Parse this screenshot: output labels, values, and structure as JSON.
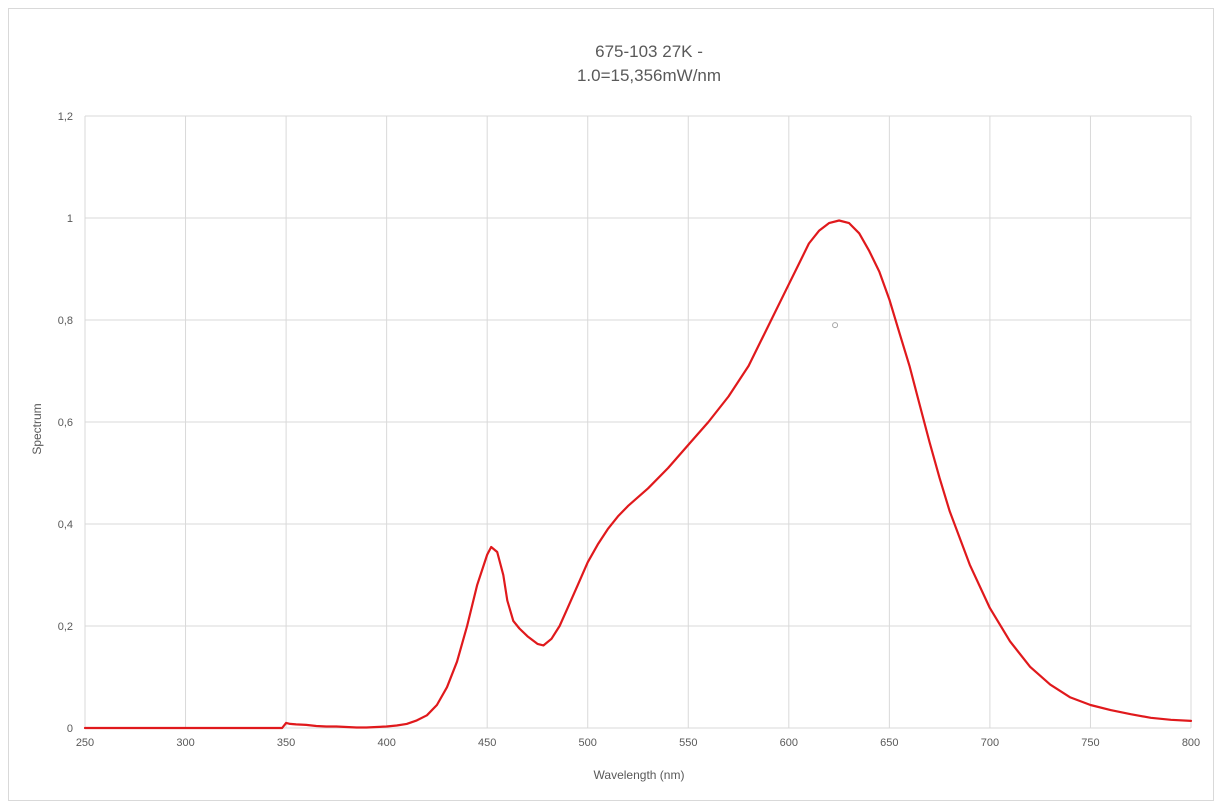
{
  "chart_data": {
    "type": "line",
    "title_line1": "675-103 27K -",
    "title_line2": "1.0=15,356mW/nm",
    "xlabel": "Wavelength (nm)",
    "ylabel": "Spectrum",
    "xlim": [
      250,
      800
    ],
    "ylim": [
      0,
      1.2
    ],
    "x_ticks": [
      250,
      300,
      350,
      400,
      450,
      500,
      550,
      600,
      650,
      700,
      750,
      800
    ],
    "x_tick_labels": [
      "250",
      "300",
      "350",
      "400",
      "450",
      "500",
      "550",
      "600",
      "650",
      "700",
      "750",
      "800"
    ],
    "y_ticks": [
      0,
      0.2,
      0.4,
      0.6,
      0.8,
      1.0,
      1.2
    ],
    "y_tick_labels": [
      "0",
      "0,2",
      "0,4",
      "0,6",
      "0,8",
      "1",
      "1,2"
    ],
    "grid": true,
    "line_color": "#e0191c",
    "series": [
      {
        "x": [
          250,
          300,
          348,
          350,
          352,
          355,
          360,
          365,
          370,
          375,
          380,
          385,
          390,
          395,
          400,
          405,
          410,
          415,
          420,
          425,
          430,
          435,
          440,
          445,
          450,
          452,
          455,
          458,
          460,
          463,
          466,
          470,
          475,
          478,
          482,
          486,
          490,
          495,
          500,
          505,
          510,
          515,
          520,
          530,
          540,
          550,
          560,
          570,
          580,
          590,
          600,
          605,
          610,
          615,
          620,
          625,
          630,
          635,
          640,
          645,
          650,
          655,
          660,
          665,
          670,
          675,
          680,
          690,
          700,
          710,
          720,
          730,
          740,
          750,
          760,
          770,
          780,
          790,
          800
        ],
        "y": [
          0,
          0,
          0,
          0.01,
          0.008,
          0.007,
          0.006,
          0.004,
          0.003,
          0.003,
          0.002,
          0.001,
          0.001,
          0.002,
          0.003,
          0.005,
          0.008,
          0.015,
          0.025,
          0.045,
          0.08,
          0.13,
          0.2,
          0.28,
          0.34,
          0.355,
          0.345,
          0.3,
          0.25,
          0.21,
          0.195,
          0.18,
          0.165,
          0.162,
          0.175,
          0.2,
          0.235,
          0.28,
          0.325,
          0.36,
          0.39,
          0.415,
          0.435,
          0.47,
          0.51,
          0.555,
          0.6,
          0.65,
          0.71,
          0.79,
          0.87,
          0.91,
          0.95,
          0.975,
          0.99,
          0.995,
          0.99,
          0.97,
          0.935,
          0.895,
          0.84,
          0.775,
          0.71,
          0.635,
          0.56,
          0.49,
          0.425,
          0.32,
          0.235,
          0.17,
          0.12,
          0.085,
          0.06,
          0.045,
          0.035,
          0.027,
          0.02,
          0.016,
          0.014
        ]
      }
    ],
    "marker": {
      "x": 623,
      "y": 0.79
    }
  }
}
